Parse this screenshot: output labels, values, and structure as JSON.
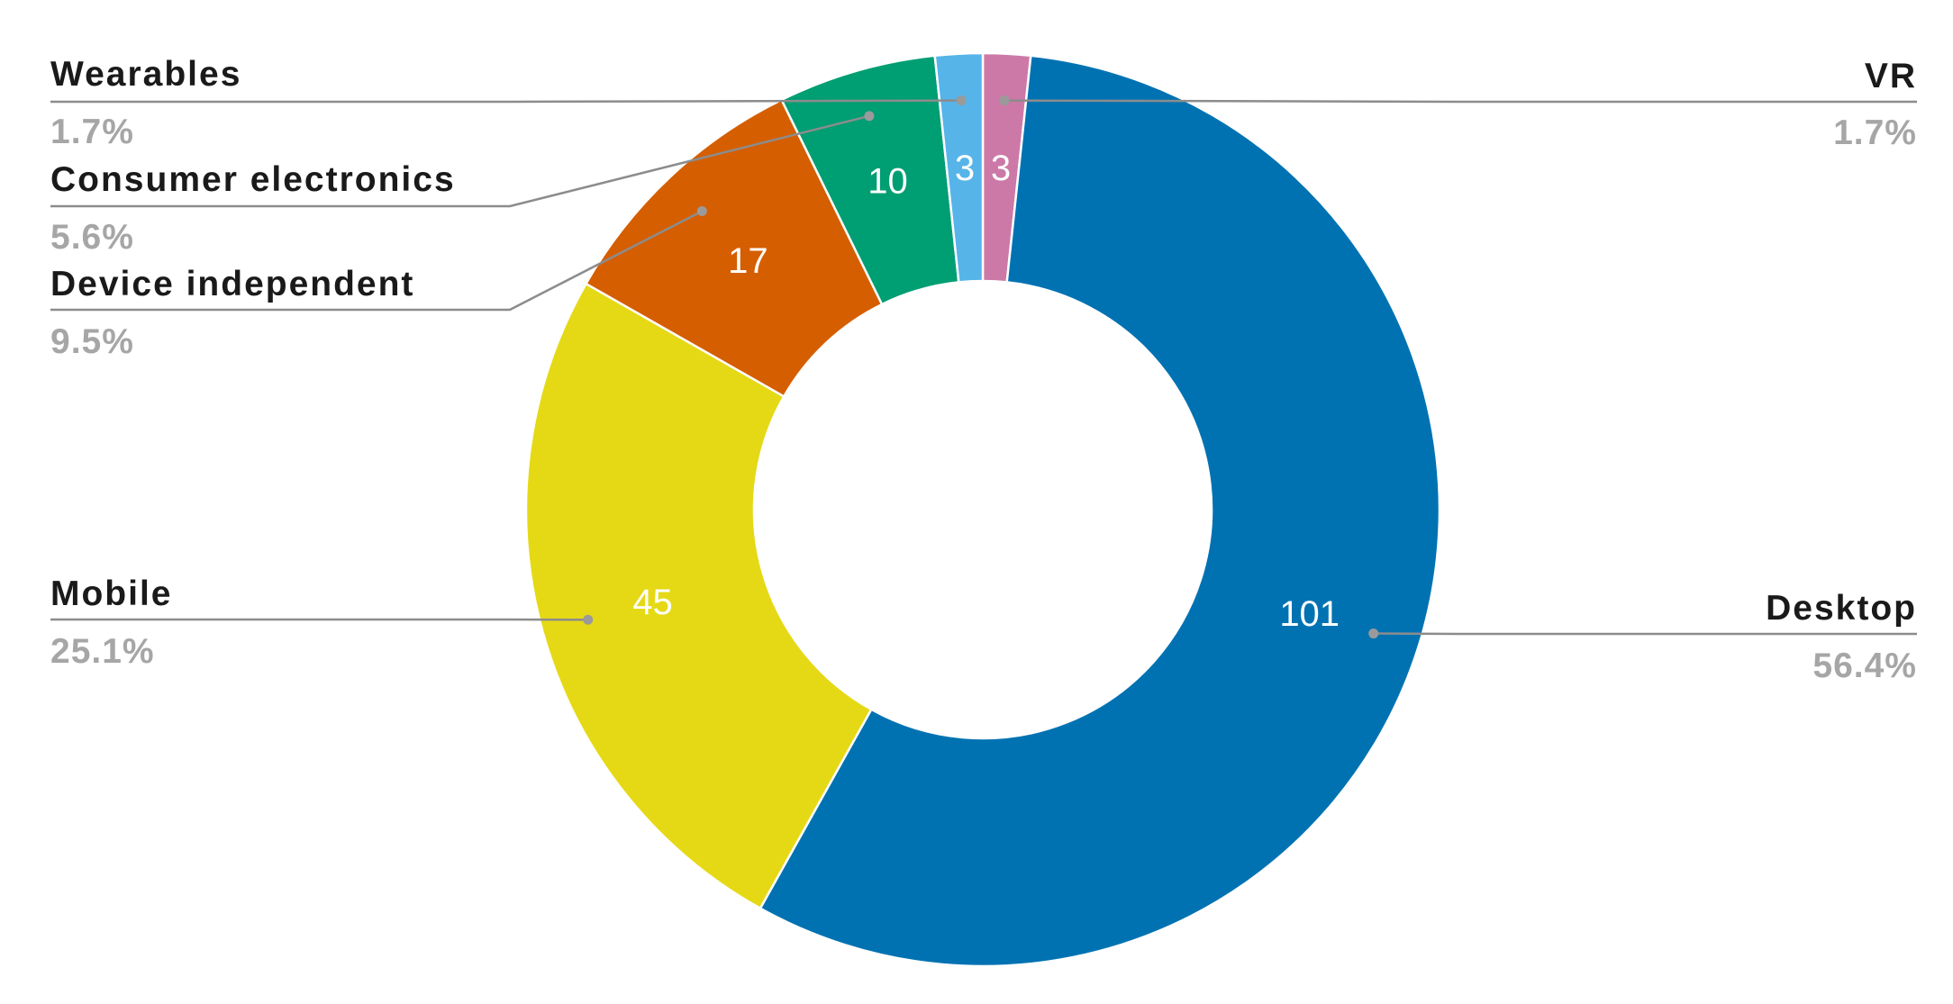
{
  "chart_data": {
    "type": "pie",
    "variant": "donut",
    "title": "",
    "slices": [
      {
        "name": "VR",
        "value": 3,
        "percent_label": "1.7%",
        "color": "#cc79a7",
        "value_label": "3"
      },
      {
        "name": "Desktop",
        "value": 101,
        "percent_label": "56.4%",
        "color": "#0072b2",
        "value_label": "101"
      },
      {
        "name": "Mobile",
        "value": 45,
        "percent_label": "25.1%",
        "color": "#e5d916",
        "value_label": "45"
      },
      {
        "name": "Device independent",
        "value": 17,
        "percent_label": "9.5%",
        "color": "#d55e00",
        "value_label": "17"
      },
      {
        "name": "Consumer electronics",
        "value": 10,
        "percent_label": "5.6%",
        "color": "#009e73",
        "value_label": "10"
      },
      {
        "name": "Wearables",
        "value": 3,
        "percent_label": "1.7%",
        "color": "#56b4e9",
        "value_label": "3"
      }
    ],
    "start_angle_deg": 0,
    "direction": "clockwise",
    "legend": "none",
    "labels": "outside-with-leader-lines"
  }
}
